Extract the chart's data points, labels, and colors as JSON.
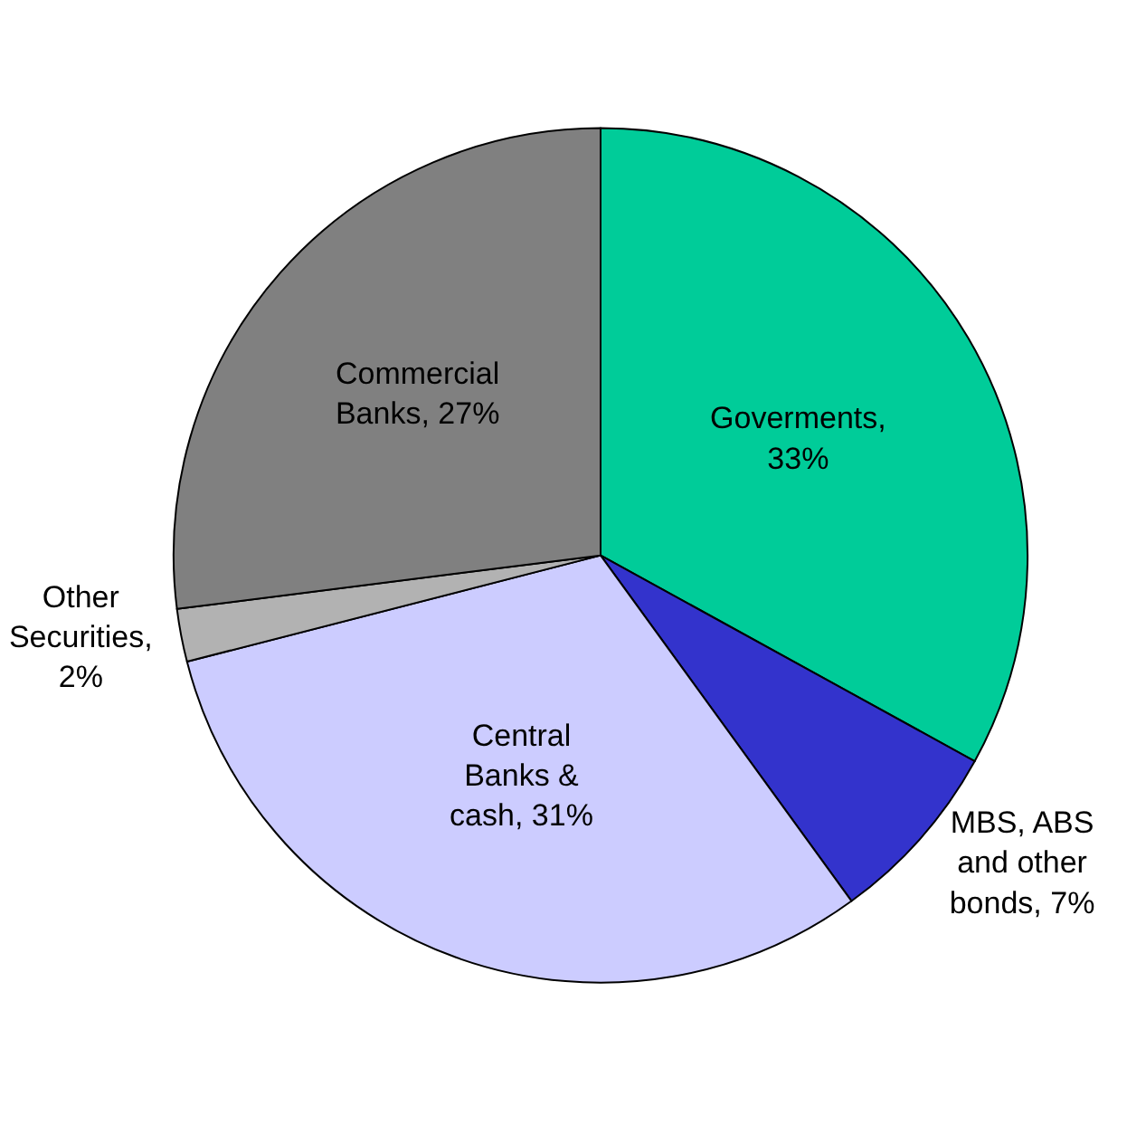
{
  "chart_data": {
    "type": "pie",
    "categories": [
      "Goverments, 33%",
      "MBS, ABS and other bonds, 7%",
      "Central Banks & cash, 31%",
      "Other Securities, 2%",
      "Commercial Banks, 27%"
    ],
    "values": [
      33,
      7,
      31,
      2,
      27
    ],
    "colors": [
      "#00cc99",
      "#3333cc",
      "#ccccff",
      "#b2b2b2",
      "#808080"
    ],
    "legend": false
  }
}
